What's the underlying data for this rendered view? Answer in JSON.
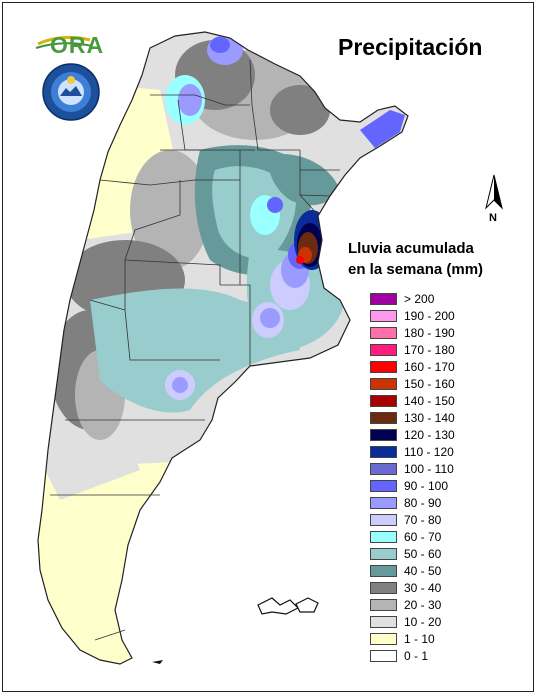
{
  "title": "Precipitación",
  "logo": {
    "text": "ORA",
    "seal_text": "SERVICIO METEOROLOGICO NACIONAL ARGENTINA"
  },
  "north": {
    "label": "N"
  },
  "legend": {
    "title_line1": "Lluvia acumulada",
    "title_line2": "en la semana (mm)",
    "items": [
      {
        "label": "> 200",
        "color": "#a000a0"
      },
      {
        "label": "190 - 200",
        "color": "#ff99ee"
      },
      {
        "label": "180 - 190",
        "color": "#ff6fa8"
      },
      {
        "label": "170 - 180",
        "color": "#ff1c7c"
      },
      {
        "label": "160 - 170",
        "color": "#ff0000"
      },
      {
        "label": "150 - 160",
        "color": "#cc3300"
      },
      {
        "label": "140 - 150",
        "color": "#a80000"
      },
      {
        "label": "130 - 140",
        "color": "#6b2b10"
      },
      {
        "label": "120 - 130",
        "color": "#000050"
      },
      {
        "label": "110 - 120",
        "color": "#0a2c9a"
      },
      {
        "label": "100 - 110",
        "color": "#6a6ad0"
      },
      {
        "label": "90 - 100",
        "color": "#6464ff"
      },
      {
        "label": "80 - 90",
        "color": "#9a9aff"
      },
      {
        "label": "70 - 80",
        "color": "#ccccff"
      },
      {
        "label": "60 - 70",
        "color": "#99ffff"
      },
      {
        "label": "50 - 60",
        "color": "#99cccc"
      },
      {
        "label": "40 - 50",
        "color": "#669999"
      },
      {
        "label": "30 - 40",
        "color": "#808080"
      },
      {
        "label": "20 - 30",
        "color": "#b4b4b4"
      },
      {
        "label": "10 - 20",
        "color": "#e0e0e0"
      },
      {
        "label": "1 - 10",
        "color": "#ffffcc"
      },
      {
        "label": "0 - 1",
        "color": "#ffffff"
      }
    ]
  }
}
